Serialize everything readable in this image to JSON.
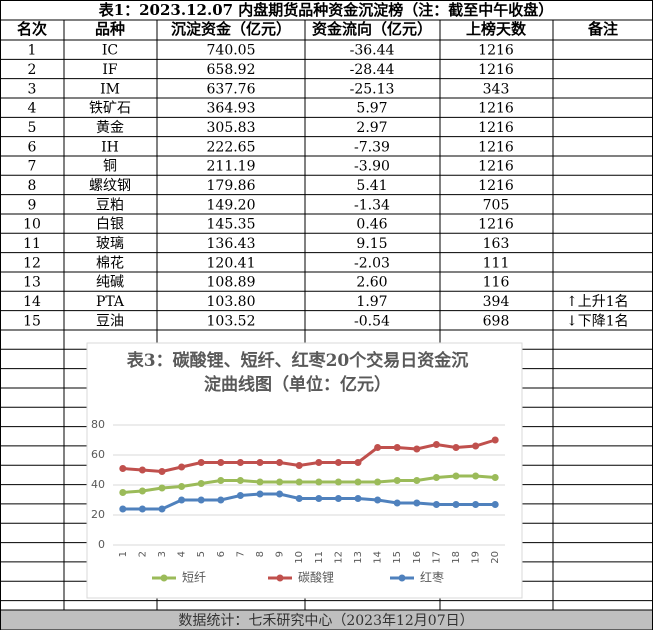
{
  "table": {
    "title": "表1：2023.12.07 内盘期货品种资金沉淀榜（注：截至中午收盘）",
    "headers": [
      "名次",
      "品种",
      "沉淀资金（亿元）",
      "资金流向（亿元）",
      "上榜天数",
      "备注"
    ],
    "rows": [
      [
        "1",
        "IC",
        "740.05",
        "-36.44",
        "1216",
        ""
      ],
      [
        "2",
        "IF",
        "658.92",
        "-28.44",
        "1216",
        ""
      ],
      [
        "3",
        "IM",
        "637.76",
        "-25.13",
        "343",
        ""
      ],
      [
        "4",
        "铁矿石",
        "364.93",
        "5.97",
        "1216",
        ""
      ],
      [
        "5",
        "黄金",
        "305.83",
        "2.97",
        "1216",
        ""
      ],
      [
        "6",
        "IH",
        "222.65",
        "-7.39",
        "1216",
        ""
      ],
      [
        "7",
        "铜",
        "211.19",
        "-3.90",
        "1216",
        ""
      ],
      [
        "8",
        "螺纹钢",
        "179.86",
        "5.41",
        "1216",
        ""
      ],
      [
        "9",
        "豆粕",
        "149.20",
        "-1.34",
        "705",
        ""
      ],
      [
        "10",
        "白银",
        "145.35",
        "0.46",
        "1216",
        ""
      ],
      [
        "11",
        "玻璃",
        "136.43",
        "9.15",
        "163",
        ""
      ],
      [
        "12",
        "棉花",
        "120.41",
        "-2.03",
        "111",
        ""
      ],
      [
        "13",
        "纯碱",
        "108.89",
        "2.60",
        "116",
        ""
      ],
      [
        "14",
        "PTA",
        "103.80",
        "1.97",
        "394",
        "↑上升1名"
      ],
      [
        "15",
        "豆油",
        "103.52",
        "-0.54",
        "698",
        "↓下降1名"
      ]
    ]
  },
  "chart_data": {
    "type": "line",
    "title": "表3：碳酸锂、短纤、红枣20个交易日资金沉淀曲线图（单位：亿元）",
    "categories": [
      "1",
      "2",
      "3",
      "4",
      "5",
      "6",
      "7",
      "8",
      "9",
      "10",
      "11",
      "12",
      "13",
      "14",
      "15",
      "16",
      "17",
      "18",
      "19",
      "20"
    ],
    "series": [
      {
        "name": "短纤",
        "color": "#9bbb59",
        "values": [
          35,
          36,
          38,
          39,
          41,
          43,
          43,
          42,
          42,
          42,
          42,
          42,
          42,
          42,
          43,
          43,
          45,
          46,
          46,
          45
        ]
      },
      {
        "name": "碳酸锂",
        "color": "#c0504d",
        "values": [
          51,
          50,
          49,
          52,
          55,
          55,
          55,
          55,
          55,
          53,
          55,
          55,
          55,
          65,
          65,
          64,
          67,
          65,
          66,
          70
        ]
      },
      {
        "name": "红枣",
        "color": "#4f81bd",
        "values": [
          24,
          24,
          24,
          30,
          30,
          30,
          33,
          34,
          34,
          31,
          31,
          31,
          31,
          30,
          28,
          28,
          27,
          27,
          27,
          27
        ]
      }
    ],
    "ylim": [
      0,
      80
    ],
    "yticks": [
      0,
      20,
      40,
      60,
      80
    ],
    "grid": true,
    "legend": "bottom"
  },
  "footer": "数据统计：七禾研究中心（2023年12月07日）"
}
